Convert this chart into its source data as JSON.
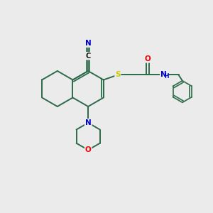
{
  "bg_color": "#ebebeb",
  "bond_color": "#2d6b4a",
  "atom_colors": {
    "N": "#0000cc",
    "O": "#ee0000",
    "S": "#cccc00",
    "C": "#111111"
  },
  "figsize": [
    3.0,
    3.0
  ],
  "dpi": 100
}
